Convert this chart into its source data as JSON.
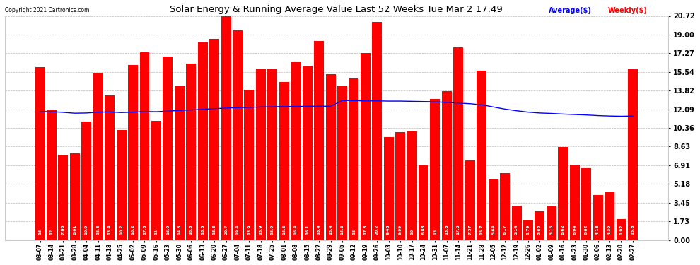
{
  "title": "Solar Energy & Running Average Value Last 52 Weeks Tue Mar 2 17:49",
  "copyright": "Copyright 2021 Cartronics.com",
  "bar_color": "#ff0000",
  "avg_line_color": "#0000ff",
  "background_color": "#ffffff",
  "grid_color": "#bbbbbb",
  "yticks": [
    0.0,
    1.73,
    3.45,
    5.18,
    6.91,
    8.63,
    10.36,
    12.09,
    13.82,
    15.54,
    17.27,
    19.0,
    20.72
  ],
  "ylim": [
    0,
    20.72
  ],
  "legend_avg": "Average($)",
  "legend_weekly": "Weekly($)",
  "categories": [
    "03-07",
    "03-14",
    "03-21",
    "03-28",
    "04-04",
    "04-11",
    "04-18",
    "04-25",
    "05-02",
    "05-09",
    "05-16",
    "05-23",
    "05-30",
    "06-06",
    "06-13",
    "06-20",
    "06-27",
    "07-04",
    "07-11",
    "07-18",
    "07-25",
    "08-01",
    "08-08",
    "08-15",
    "08-22",
    "08-29",
    "09-05",
    "09-12",
    "09-19",
    "09-26",
    "10-03",
    "10-10",
    "10-17",
    "10-24",
    "10-31",
    "11-07",
    "11-14",
    "11-21",
    "11-28",
    "12-05",
    "12-12",
    "12-19",
    "12-26",
    "01-02",
    "01-09",
    "01-16",
    "01-23",
    "01-30",
    "02-06",
    "02-13",
    "02-20",
    "02-27"
  ],
  "weekly_values": [
    15.996,
    11.994,
    7.862,
    8.012,
    10.924,
    15.454,
    13.388,
    10.196,
    16.188,
    17.335,
    10.988,
    16.934,
    14.313,
    16.323,
    18.301,
    18.623,
    20.723,
    19.406,
    13.876,
    15.88,
    15.871,
    14.606,
    16.408,
    16.081,
    18.384,
    15.355,
    14.257,
    14.955,
    17.295,
    20.195,
    9.484,
    9.986,
    10.039,
    6.875,
    13.015,
    13.759,
    17.83,
    7.374,
    15.674,
    5.643,
    6.171,
    3.143,
    1.79,
    2.622,
    3.145,
    8.617,
    6.94,
    6.617,
    4.18,
    4.39,
    1.921,
    15.792
  ],
  "avg_values": [
    11.88,
    11.87,
    11.8,
    11.72,
    11.74,
    11.82,
    11.84,
    11.78,
    11.82,
    11.88,
    11.86,
    11.92,
    11.98,
    12.02,
    12.08,
    12.14,
    12.2,
    12.24,
    12.26,
    12.3,
    12.32,
    12.34,
    12.35,
    12.36,
    12.38,
    12.36,
    12.9,
    12.88,
    12.86,
    12.86,
    12.84,
    12.84,
    12.82,
    12.8,
    12.78,
    12.72,
    12.66,
    12.6,
    12.5,
    12.3,
    12.1,
    11.95,
    11.82,
    11.74,
    11.7,
    11.64,
    11.6,
    11.56,
    11.5,
    11.46,
    11.44,
    11.46
  ]
}
